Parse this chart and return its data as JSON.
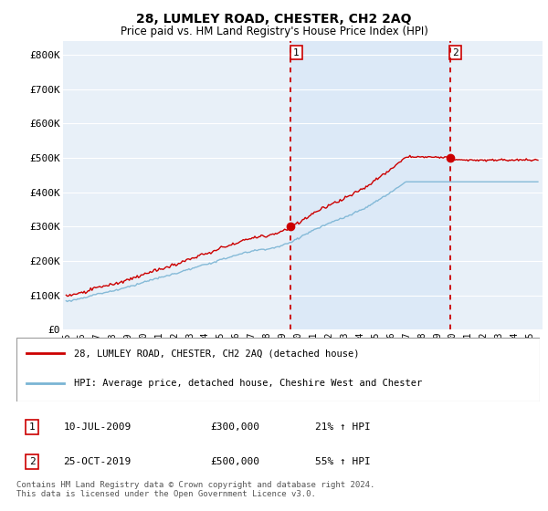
{
  "title": "28, LUMLEY ROAD, CHESTER, CH2 2AQ",
  "subtitle": "Price paid vs. HM Land Registry's House Price Index (HPI)",
  "ylabel_ticks": [
    "£0",
    "£100K",
    "£200K",
    "£300K",
    "£400K",
    "£500K",
    "£600K",
    "£700K",
    "£800K"
  ],
  "ytick_values": [
    0,
    100000,
    200000,
    300000,
    400000,
    500000,
    600000,
    700000,
    800000
  ],
  "ylim": [
    0,
    840000
  ],
  "xlim_start": 1994.8,
  "xlim_end": 2025.8,
  "sale1_x": 2009.53,
  "sale1_price": 300000,
  "sale2_x": 2019.82,
  "sale2_price": 500000,
  "legend_line1": "28, LUMLEY ROAD, CHESTER, CH2 2AQ (detached house)",
  "legend_line2": "HPI: Average price, detached house, Cheshire West and Chester",
  "table_row1": [
    "1",
    "10-JUL-2009",
    "£300,000",
    "21% ↑ HPI"
  ],
  "table_row2": [
    "2",
    "25-OCT-2019",
    "£500,000",
    "55% ↑ HPI"
  ],
  "footer": "Contains HM Land Registry data © Crown copyright and database right 2024.\nThis data is licensed under the Open Government Licence v3.0.",
  "line_color_red": "#cc0000",
  "line_color_blue": "#7ab4d4",
  "shading_color": "#dce9f7",
  "plot_bg": "#e8f0f8",
  "grid_color": "#ffffff",
  "vline_color": "#cc0000"
}
